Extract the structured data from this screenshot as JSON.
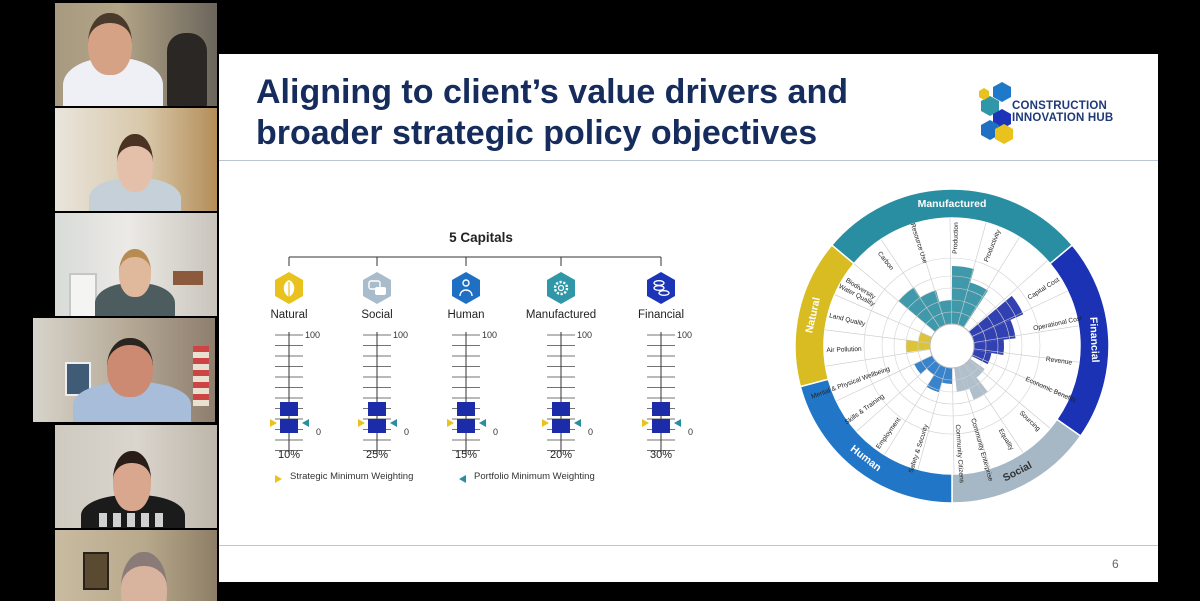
{
  "slide": {
    "title_line1": "Aligning to client’s value drivers and",
    "title_line2": "broader strategic policy objectives",
    "page_number": "6",
    "logo_line1": "CONSTRUCTION",
    "logo_line2": "INNOVATION HUB"
  },
  "capitals": {
    "heading": "5 Capitals",
    "scale_max": "100",
    "scale_min": "0",
    "legend_strategic": "Strategic Minimum Weighting",
    "legend_portfolio": "Portfolio Minimum Weighting",
    "items": [
      {
        "name": "Natural",
        "percent": "10%",
        "color": "#e9c21e",
        "icon": "leaf-icon"
      },
      {
        "name": "Social",
        "percent": "25%",
        "color": "#a9bccb",
        "icon": "speech-bubbles-icon"
      },
      {
        "name": "Human",
        "percent": "15%",
        "color": "#1f6fc2",
        "icon": "person-icon"
      },
      {
        "name": "Manufactured",
        "percent": "20%",
        "color": "#2f97a8",
        "icon": "gear-icon"
      },
      {
        "name": "Financial",
        "percent": "30%",
        "color": "#1c34b8",
        "icon": "coins-icon"
      }
    ]
  },
  "wheel": {
    "sectors": [
      {
        "name": "Manufactured",
        "color": "#2a8ea2"
      },
      {
        "name": "Financial",
        "color": "#1a32b3"
      },
      {
        "name": "Social",
        "color": "#a6b8c6"
      },
      {
        "name": "Human",
        "color": "#2176c7"
      },
      {
        "name": "Natural",
        "color": "#d8bc22"
      }
    ],
    "sub_labels": {
      "carbon": "Carbon",
      "ghg": "GHG",
      "emissions": "Emissions",
      "resource_use": "Resource Use",
      "production": "Production",
      "productivity": "Productivity",
      "capital_cost": "Capital Cost",
      "operational_cost": "Operational Cost",
      "revenue": "Revenue",
      "economic_benefits": "Economic Benefits",
      "sourcing": "Sourcing",
      "equality": "Equality",
      "community_enterprise": "Community Enterprise",
      "community_citizens": "Community Citizens",
      "safety_security": "Safety & Security",
      "employment": "Employment",
      "skills_training": "Skills & Training",
      "mental_wellbeing": "Mental & Physical Wellbeing",
      "air_pollution": "Air Pollution",
      "land_quality": "Land Quality",
      "water_quality": "Water Quality",
      "biodiversity": "Biodiversity"
    }
  },
  "participants": [
    {
      "shirt": "#f1f2f6",
      "skin": "#d9a58a",
      "hair": "#3b2c22",
      "bg": "#9a8c74"
    },
    {
      "shirt": "#c9d4dc",
      "skin": "#e6c3ae",
      "hair": "#4a3323",
      "bg": "#b29a7a"
    },
    {
      "shirt": "#4a5a5c",
      "skin": "#e2b99c",
      "hair": "#b88b52",
      "bg": "#d9d4cc"
    },
    {
      "shirt": "#a9bedb",
      "skin": "#cf8c74",
      "hair": "#2b2520",
      "bg": "#bfb4a2"
    },
    {
      "shirt": "#1d1d1d",
      "skin": "#d9a88e",
      "hair": "#2a1d17",
      "bg": "#c9c2b6"
    },
    {
      "shirt": "#6a5d55",
      "skin": "#d8b39e",
      "hair": "#7a6a66",
      "bg": "#b7a890"
    }
  ]
}
